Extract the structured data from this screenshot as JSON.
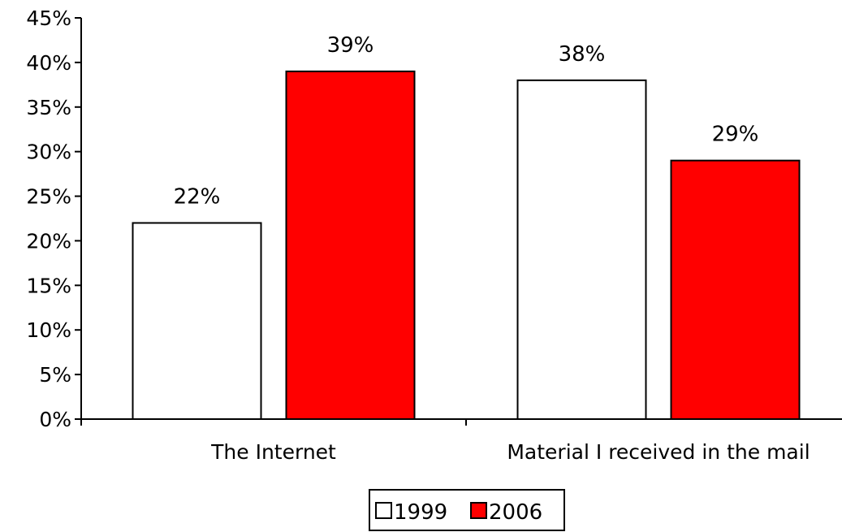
{
  "chart_data": {
    "type": "bar",
    "categories": [
      "The Internet",
      "Material I received in the mail"
    ],
    "series": [
      {
        "name": "1999",
        "values": [
          22,
          38
        ],
        "labels": [
          "22%",
          "38%"
        ],
        "color": "#ffffff"
      },
      {
        "name": "2006",
        "values": [
          39,
          29
        ],
        "labels": [
          "39%",
          "29%"
        ],
        "color": "#ff0000"
      }
    ],
    "ylim": [
      0,
      45
    ],
    "yticks": [
      0,
      5,
      10,
      15,
      20,
      25,
      30,
      35,
      40,
      45
    ],
    "ytick_labels": [
      "0%",
      "5%",
      "10%",
      "15%",
      "20%",
      "25%",
      "30%",
      "35%",
      "40%",
      "45%"
    ],
    "title": "",
    "xlabel": "",
    "ylabel": "",
    "grid": false,
    "legend_position": "bottom"
  }
}
